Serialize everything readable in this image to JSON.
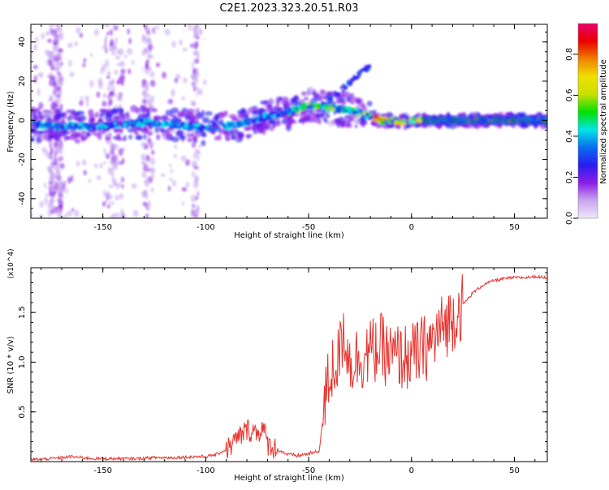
{
  "title": "C2E1.2023.323.20.51.R03",
  "colors": {
    "snr_line": "#e8312c",
    "frame": "#000000"
  },
  "chart_data": [
    {
      "type": "heatmap",
      "title": "",
      "xlabel": "Height of straight line (km)",
      "ylabel": "Frequency (Hz)",
      "xlim": [
        -185,
        66
      ],
      "ylim": [
        -50,
        49
      ],
      "x_ticks": [
        -150,
        -100,
        -50,
        0,
        50
      ],
      "x_tick_labels": [
        "-150",
        "-100",
        "-50",
        "0",
        "50"
      ],
      "y_ticks": [
        40,
        20,
        0,
        -20,
        -40
      ],
      "y_tick_labels": [
        "40",
        "20",
        "0",
        "-20",
        "-40"
      ],
      "colorbar": {
        "label": "Normalized spectral amplitude",
        "range": [
          0,
          0.95
        ],
        "ticks": [
          0.0,
          0.2,
          0.4,
          0.6,
          0.8
        ],
        "tick_labels": [
          "0.0",
          "0.2",
          "0.4",
          "0.6",
          "0.8"
        ],
        "colormap": [
          "#f0e6fa",
          "#c9a6f0",
          "#8a1fe6",
          "#2a1cf0",
          "#0a6cf0",
          "#00e6e6",
          "#00e000",
          "#c8e000",
          "#f0e000",
          "#f08000",
          "#e80000",
          "#e8006c"
        ]
      },
      "ridge": {
        "x": [
          -185,
          -170,
          -150,
          -130,
          -110,
          -100,
          -90,
          -80,
          -70,
          -60,
          -55,
          -50,
          -45,
          -40,
          -35,
          -30,
          -25,
          -20,
          -15,
          -10,
          -5,
          0,
          10,
          20,
          30,
          40,
          50,
          60,
          66
        ],
        "y": [
          -2,
          -3,
          -3,
          -1,
          -3,
          -4,
          -3,
          -1,
          2,
          4,
          6,
          8,
          7,
          6,
          6,
          5,
          4,
          2,
          0,
          0,
          -1,
          0,
          0,
          0,
          0,
          0,
          0,
          0,
          0
        ]
      },
      "grid": false
    },
    {
      "type": "line",
      "title": "",
      "xlabel": "Height of straight line (km)",
      "ylabel": "SNR (10 * v/v)",
      "y_scale_label": "(x10^4)",
      "xlim": [
        -185,
        66
      ],
      "ylim": [
        0,
        1.95
      ],
      "x_ticks": [
        -150,
        -100,
        -50,
        0,
        50
      ],
      "x_tick_labels": [
        "-150",
        "-100",
        "-50",
        "0",
        "50"
      ],
      "y_ticks": [
        0.5,
        1.0,
        1.5
      ],
      "y_tick_labels": [
        "0.5",
        "1.0",
        "1.5"
      ],
      "series": [
        {
          "x": [
            -185,
            -175,
            -165,
            -155,
            -145,
            -135,
            -125,
            -115,
            -105,
            -100,
            -95,
            -90,
            -85,
            -80,
            -75,
            -72,
            -70,
            -65,
            -60,
            -55,
            -50,
            -45,
            -42,
            -40,
            -38,
            -35,
            -33,
            -30,
            -25,
            -20,
            -15,
            -10,
            -5,
            0,
            5,
            10,
            15,
            20,
            25,
            30,
            35,
            40,
            45,
            50,
            55,
            60,
            66
          ],
          "y": [
            0.02,
            0.03,
            0.05,
            0.03,
            0.03,
            0.03,
            0.04,
            0.04,
            0.05,
            0.05,
            0.07,
            0.12,
            0.22,
            0.32,
            0.3,
            0.33,
            0.18,
            0.12,
            0.07,
            0.06,
            0.08,
            0.1,
            0.6,
            0.85,
            0.95,
            1.05,
            1.35,
            1.0,
            1.05,
            1.1,
            1.15,
            1.05,
            1.05,
            1.05,
            1.12,
            1.2,
            1.35,
            1.45,
            1.58,
            1.7,
            1.78,
            1.82,
            1.84,
            1.85,
            1.85,
            1.86,
            1.85
          ]
        }
      ],
      "grid": false
    }
  ]
}
